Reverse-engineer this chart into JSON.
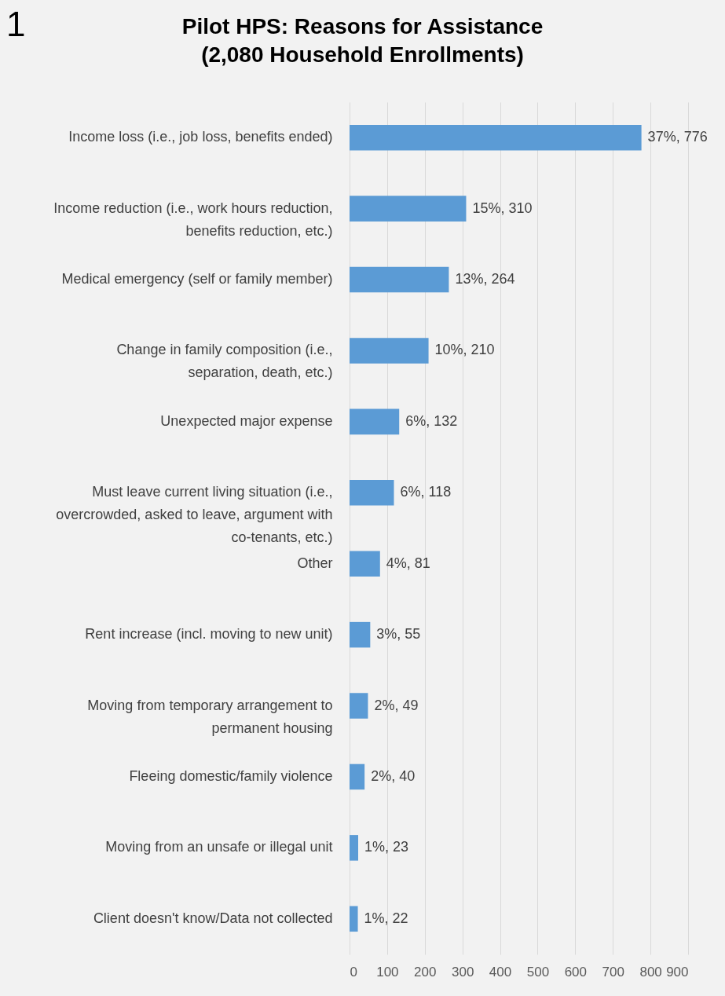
{
  "chart_data": {
    "type": "bar",
    "orientation": "horizontal",
    "title": "Pilot HPS: Reasons for Assistance",
    "subtitle": "(2,080 Household Enrollments)",
    "annotations": [
      "1"
    ],
    "categories": [
      "Income loss (i.e., job loss, benefits ended)",
      "Income reduction (i.e., work hours reduction, benefits reduction, etc.)",
      "Medical emergency (self or family member)",
      "Change in family composition (i.e., separation, death, etc.)",
      "Unexpected major expense",
      "Must leave current living situation (i.e., overcrowded, asked to leave, argument with co-tenants, etc.)",
      "Other",
      "Rent increase (incl. moving to new unit)",
      "Moving from temporary arrangement to permanent housing",
      "Fleeing domestic/family violence",
      "Moving from an unsafe or illegal unit",
      "Client doesn't know/Data not collected"
    ],
    "values": [
      776,
      310,
      264,
      210,
      132,
      118,
      81,
      55,
      49,
      40,
      23,
      22
    ],
    "value_labels": [
      "37%, 776",
      "15%, 310",
      "13%, 264",
      "10%, 210",
      "6%, 132",
      "6%, 118",
      "4%, 81",
      "3%, 55",
      "2%, 49",
      "2%, 40",
      "1%, 23",
      "1%, 22"
    ],
    "color": "#5b9bd5",
    "xlim": [
      0,
      900
    ],
    "xticks": [
      0,
      100,
      200,
      300,
      400,
      500,
      600,
      700,
      800,
      900
    ],
    "grid": "x"
  }
}
